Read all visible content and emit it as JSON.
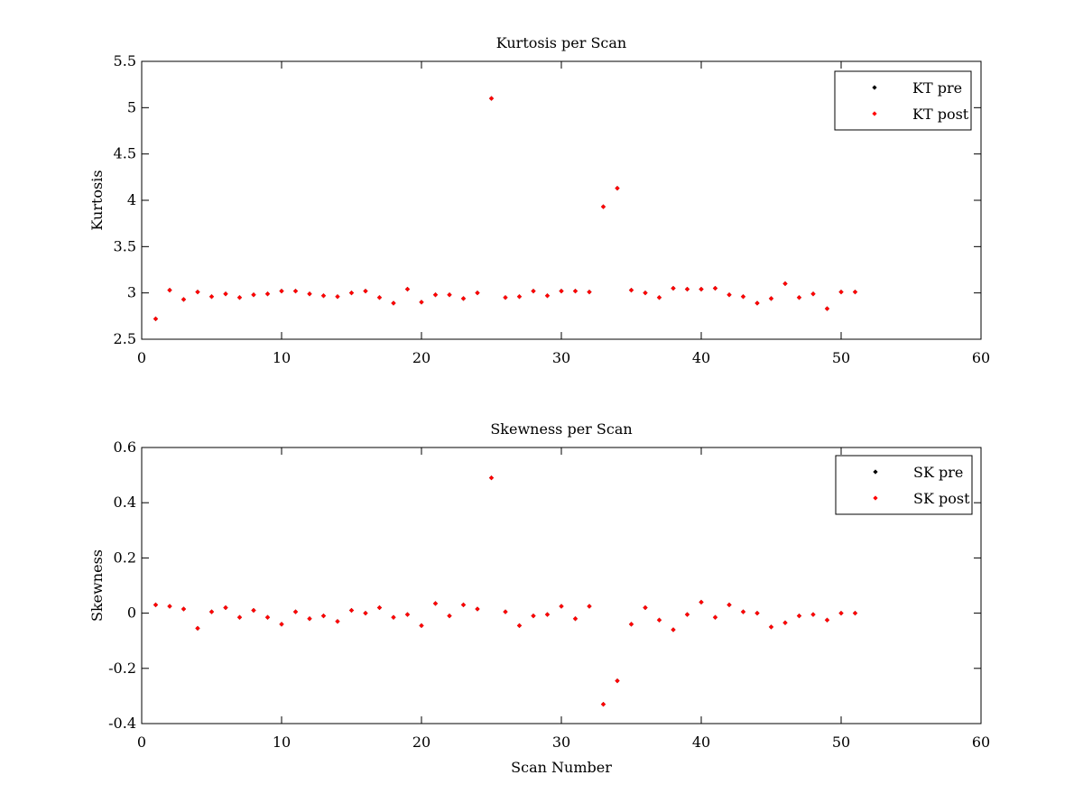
{
  "chart_data": [
    {
      "type": "scatter",
      "title": "Kurtosis per Scan",
      "xlabel": "",
      "ylabel": "Kurtosis",
      "xlim": [
        0,
        60
      ],
      "ylim": [
        2.5,
        5.5
      ],
      "xticks": [
        0,
        10,
        20,
        30,
        40,
        50,
        60
      ],
      "yticks": [
        2.5,
        3,
        3.5,
        4,
        4.5,
        5,
        5.5
      ],
      "xtick_labels": [
        "0",
        "10",
        "20",
        "30",
        "40",
        "50",
        "60"
      ],
      "ytick_labels": [
        "2.5",
        "3",
        "3.5",
        "4",
        "4.5",
        "5",
        "5.5"
      ],
      "grid": false,
      "legend_position": "top-right",
      "x": [
        1,
        2,
        3,
        4,
        5,
        6,
        7,
        8,
        9,
        10,
        11,
        12,
        13,
        14,
        15,
        16,
        17,
        18,
        19,
        20,
        21,
        22,
        23,
        24,
        25,
        26,
        27,
        28,
        29,
        30,
        31,
        32,
        33,
        34,
        35,
        36,
        37,
        38,
        39,
        40,
        41,
        42,
        43,
        44,
        45,
        46,
        47,
        48,
        49,
        50,
        51
      ],
      "series": [
        {
          "name": "KT pre",
          "color": "#000000",
          "values": [
            2.72,
            3.03,
            2.93,
            3.01,
            2.96,
            2.99,
            2.95,
            2.98,
            2.99,
            3.02,
            3.02,
            2.99,
            2.97,
            2.96,
            3.0,
            3.02,
            2.95,
            2.89,
            3.04,
            2.9,
            2.98,
            2.98,
            2.94,
            3.0,
            5.1,
            2.95,
            2.96,
            3.02,
            2.97,
            3.02,
            3.02,
            3.01,
            3.93,
            4.13,
            3.03,
            3.0,
            2.95,
            3.05,
            3.04,
            3.04,
            3.05,
            2.98,
            2.96,
            2.89,
            2.94,
            3.1,
            2.95,
            2.99,
            2.83,
            3.01,
            3.01
          ]
        },
        {
          "name": "KT post",
          "color": "#ff0000",
          "values": [
            2.72,
            3.03,
            2.93,
            3.01,
            2.96,
            2.99,
            2.95,
            2.98,
            2.99,
            3.02,
            3.02,
            2.99,
            2.97,
            2.96,
            3.0,
            3.02,
            2.95,
            2.89,
            3.04,
            2.9,
            2.98,
            2.98,
            2.94,
            3.0,
            5.1,
            2.95,
            2.96,
            3.02,
            2.97,
            3.02,
            3.02,
            3.01,
            3.93,
            4.13,
            3.03,
            3.0,
            2.95,
            3.05,
            3.04,
            3.04,
            3.05,
            2.98,
            2.96,
            2.89,
            2.94,
            3.1,
            2.95,
            2.99,
            2.83,
            3.01,
            3.01
          ]
        }
      ]
    },
    {
      "type": "scatter",
      "title": "Skewness per Scan",
      "xlabel": "Scan Number",
      "ylabel": "Skewness",
      "xlim": [
        0,
        60
      ],
      "ylim": [
        -0.4,
        0.6
      ],
      "xticks": [
        0,
        10,
        20,
        30,
        40,
        50,
        60
      ],
      "yticks": [
        -0.4,
        -0.2,
        0,
        0.2,
        0.4,
        0.6
      ],
      "xtick_labels": [
        "0",
        "10",
        "20",
        "30",
        "40",
        "50",
        "60"
      ],
      "ytick_labels": [
        "-0.4",
        "-0.2",
        "0",
        "0.2",
        "0.4",
        "0.6"
      ],
      "grid": false,
      "legend_position": "top-right",
      "x": [
        1,
        2,
        3,
        4,
        5,
        6,
        7,
        8,
        9,
        10,
        11,
        12,
        13,
        14,
        15,
        16,
        17,
        18,
        19,
        20,
        21,
        22,
        23,
        24,
        25,
        26,
        27,
        28,
        29,
        30,
        31,
        32,
        33,
        34,
        35,
        36,
        37,
        38,
        39,
        40,
        41,
        42,
        43,
        44,
        45,
        46,
        47,
        48,
        49,
        50,
        51
      ],
      "series": [
        {
          "name": "SK pre",
          "color": "#000000",
          "values": [
            0.03,
            0.025,
            0.015,
            -0.055,
            0.005,
            0.02,
            -0.015,
            0.01,
            -0.015,
            -0.04,
            0.005,
            -0.02,
            -0.01,
            -0.03,
            0.01,
            0.0,
            0.02,
            -0.015,
            -0.005,
            -0.045,
            0.035,
            -0.01,
            0.03,
            0.015,
            0.49,
            0.005,
            -0.045,
            -0.01,
            -0.005,
            0.025,
            -0.02,
            0.025,
            -0.33,
            -0.245,
            -0.04,
            0.02,
            -0.025,
            -0.06,
            -0.005,
            0.04,
            -0.015,
            0.03,
            0.005,
            0.0,
            -0.05,
            -0.035,
            -0.01,
            -0.005,
            -0.025,
            0.0,
            0.0
          ]
        },
        {
          "name": "SK post",
          "color": "#ff0000",
          "values": [
            0.03,
            0.025,
            0.015,
            -0.055,
            0.005,
            0.02,
            -0.015,
            0.01,
            -0.015,
            -0.04,
            0.005,
            -0.02,
            -0.01,
            -0.03,
            0.01,
            0.0,
            0.02,
            -0.015,
            -0.005,
            -0.045,
            0.035,
            -0.01,
            0.03,
            0.015,
            0.49,
            0.005,
            -0.045,
            -0.01,
            -0.005,
            0.025,
            -0.02,
            0.025,
            -0.33,
            -0.245,
            -0.04,
            0.02,
            -0.025,
            -0.06,
            -0.005,
            0.04,
            -0.015,
            0.03,
            0.005,
            0.0,
            -0.05,
            -0.035,
            -0.01,
            -0.005,
            -0.025,
            0.0,
            0.0
          ]
        }
      ]
    }
  ]
}
